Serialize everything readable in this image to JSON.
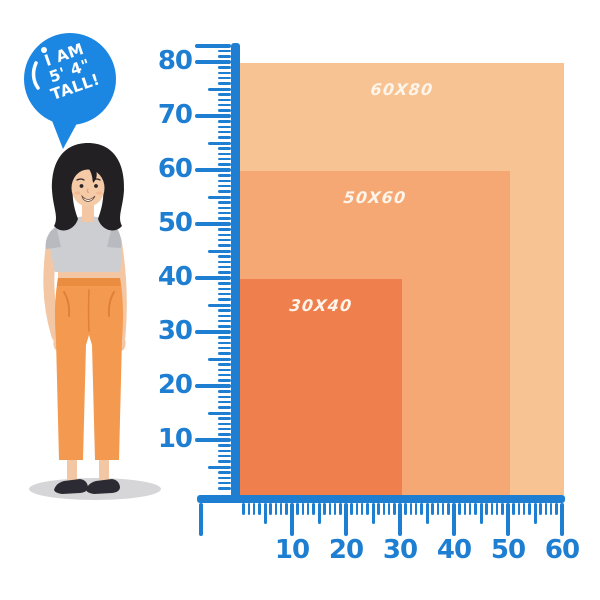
{
  "illustration": {
    "speech_bubble": {
      "lines": [
        "I AM",
        "5' 4\"",
        "TALL!"
      ],
      "bubble_color": "#1b87e3",
      "text_color": "#ffffff"
    },
    "person_colors": {
      "hair": "#232024",
      "skin": "#f3c7a4",
      "shirt": "#cdced2",
      "sleeve_shade": "#b9bac0",
      "pants": "#f49a50",
      "pants_shade": "#e07f39",
      "shoes": "#2c2b33",
      "shadow": "#d6d6d8"
    }
  },
  "chart_data": {
    "type": "nested-rectangles",
    "title": "",
    "rectangles": [
      {
        "label": "60X80",
        "width": 60,
        "height": 80,
        "color": "#f8c392"
      },
      {
        "label": "50X60",
        "width": 50,
        "height": 60,
        "color": "#f5a873"
      },
      {
        "label": "30X40",
        "width": 30,
        "height": 40,
        "color": "#ef7f4d"
      }
    ],
    "x_ticks": [
      10,
      20,
      30,
      40,
      50,
      60
    ],
    "y_ticks": [
      80,
      70,
      60,
      50,
      40,
      30,
      20,
      10
    ],
    "x_range": [
      0,
      60
    ],
    "y_range": [
      0,
      80
    ],
    "axis_color": "#1e7ed2",
    "label_color": "#fdf4ea",
    "grid": false,
    "legend": false
  }
}
